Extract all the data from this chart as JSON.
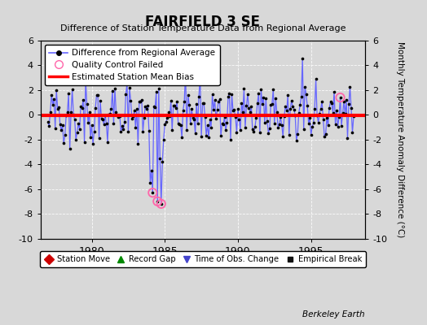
{
  "title": "FAIRFIELD 3 SE",
  "subtitle": "Difference of Station Temperature Data from Regional Average",
  "ylabel": "Monthly Temperature Anomaly Difference (°C)",
  "xlabel_bottom": "Berkeley Earth",
  "bias_value": -0.05,
  "ylim": [
    -10,
    6
  ],
  "xlim": [
    1976.5,
    1998.7
  ],
  "xticks": [
    1980,
    1985,
    1990,
    1995
  ],
  "yticks": [
    -10,
    -8,
    -6,
    -4,
    -2,
    0,
    2,
    4,
    6
  ],
  "background_color": "#d8d8d8",
  "plot_bg_color": "#d8d8d8",
  "line_color": "#6666ff",
  "dot_color": "#000000",
  "bias_color": "#ff0000",
  "qc_color": "#ff66aa",
  "seed": 42,
  "n_points": 252,
  "start_year": 1977.0,
  "legend1_labels": [
    "Difference from Regional Average",
    "Quality Control Failed",
    "Estimated Station Mean Bias"
  ],
  "legend2_labels": [
    "Station Move",
    "Record Gap",
    "Time of Obs. Change",
    "Empirical Break"
  ],
  "legend2_colors": [
    "#cc0000",
    "#008800",
    "#4444cc",
    "#111111"
  ],
  "legend2_markers": [
    "D",
    "^",
    "v",
    "s"
  ]
}
